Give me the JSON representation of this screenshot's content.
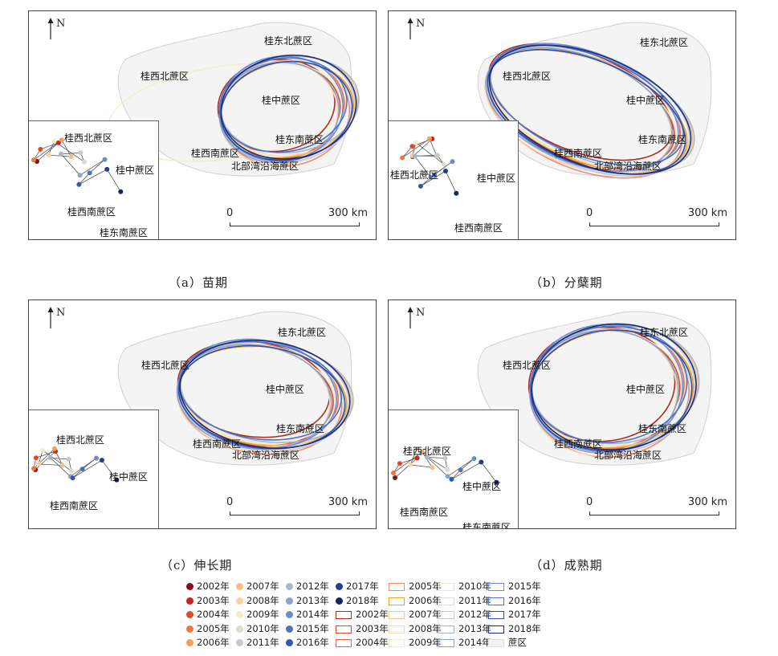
{
  "north_label": "N",
  "regions": {
    "gxb": "桂西北蔗区",
    "gdb": "桂东北蔗区",
    "gz": "桂中蔗区",
    "gdn": "桂东南蔗区",
    "gxn": "桂西南蔗区",
    "bbw": "北部湾沿海蔗区"
  },
  "scale": {
    "start": "0",
    "end": "300 km"
  },
  "panels": [
    {
      "id": "a",
      "caption": "（a）苗期"
    },
    {
      "id": "b",
      "caption": "（b）分蘖期"
    },
    {
      "id": "c",
      "caption": "（c）伸长期"
    },
    {
      "id": "d",
      "caption": "（d）成熟期"
    }
  ],
  "legend": {
    "points": [
      {
        "label": "2002年",
        "color": "#7f1212"
      },
      {
        "label": "2003年",
        "color": "#c2281f"
      },
      {
        "label": "2004年",
        "color": "#e0492a"
      },
      {
        "label": "2005年",
        "color": "#ec7a3f"
      },
      {
        "label": "2006年",
        "color": "#f2a05e"
      },
      {
        "label": "2007年",
        "color": "#f5be85"
      },
      {
        "label": "2008年",
        "color": "#f7d39d"
      },
      {
        "label": "2009年",
        "color": "#f3edc2"
      },
      {
        "label": "2010年",
        "color": "#dcdcd0"
      },
      {
        "label": "2011年",
        "color": "#c5c8cc"
      },
      {
        "label": "2012年",
        "color": "#aab5c6"
      },
      {
        "label": "2013年",
        "color": "#8ea3c5"
      },
      {
        "label": "2014年",
        "color": "#6c8dc5"
      },
      {
        "label": "2015年",
        "color": "#4d73bd"
      },
      {
        "label": "2016年",
        "color": "#3559a8"
      },
      {
        "label": "2017年",
        "color": "#233f8a"
      },
      {
        "label": "2018年",
        "color": "#142660"
      }
    ],
    "ellipses": [
      {
        "label": "2002年",
        "color": "#b22a1e"
      },
      {
        "label": "2003年",
        "color": "#d9472c"
      },
      {
        "label": "2004年",
        "color": "#e8684a"
      },
      {
        "label": "2005年",
        "color": "#f08a6a"
      },
      {
        "label": "2006年",
        "color": "#f0a31c"
      },
      {
        "label": "2007年",
        "color": "#f5c58c"
      },
      {
        "label": "2008年",
        "color": "#f7d8b5"
      },
      {
        "label": "2009年",
        "color": "#f4edc9"
      },
      {
        "label": "2010年",
        "color": "#ece8d6"
      },
      {
        "label": "2011年",
        "color": "#d8dbe0"
      },
      {
        "label": "2012年",
        "color": "#c5cbd6"
      },
      {
        "label": "2013年",
        "color": "#aab5ce"
      },
      {
        "label": "2014年",
        "color": "#8aa0cf"
      },
      {
        "label": "2015年",
        "color": "#6f8fd4"
      },
      {
        "label": "2016年",
        "color": "#4d72c6"
      },
      {
        "label": "2017年",
        "color": "#2f4fa8"
      },
      {
        "label": "2018年",
        "color": "#1d2d78"
      }
    ],
    "area": {
      "label": "蔗区",
      "color": "#f2f2f2"
    }
  }
}
